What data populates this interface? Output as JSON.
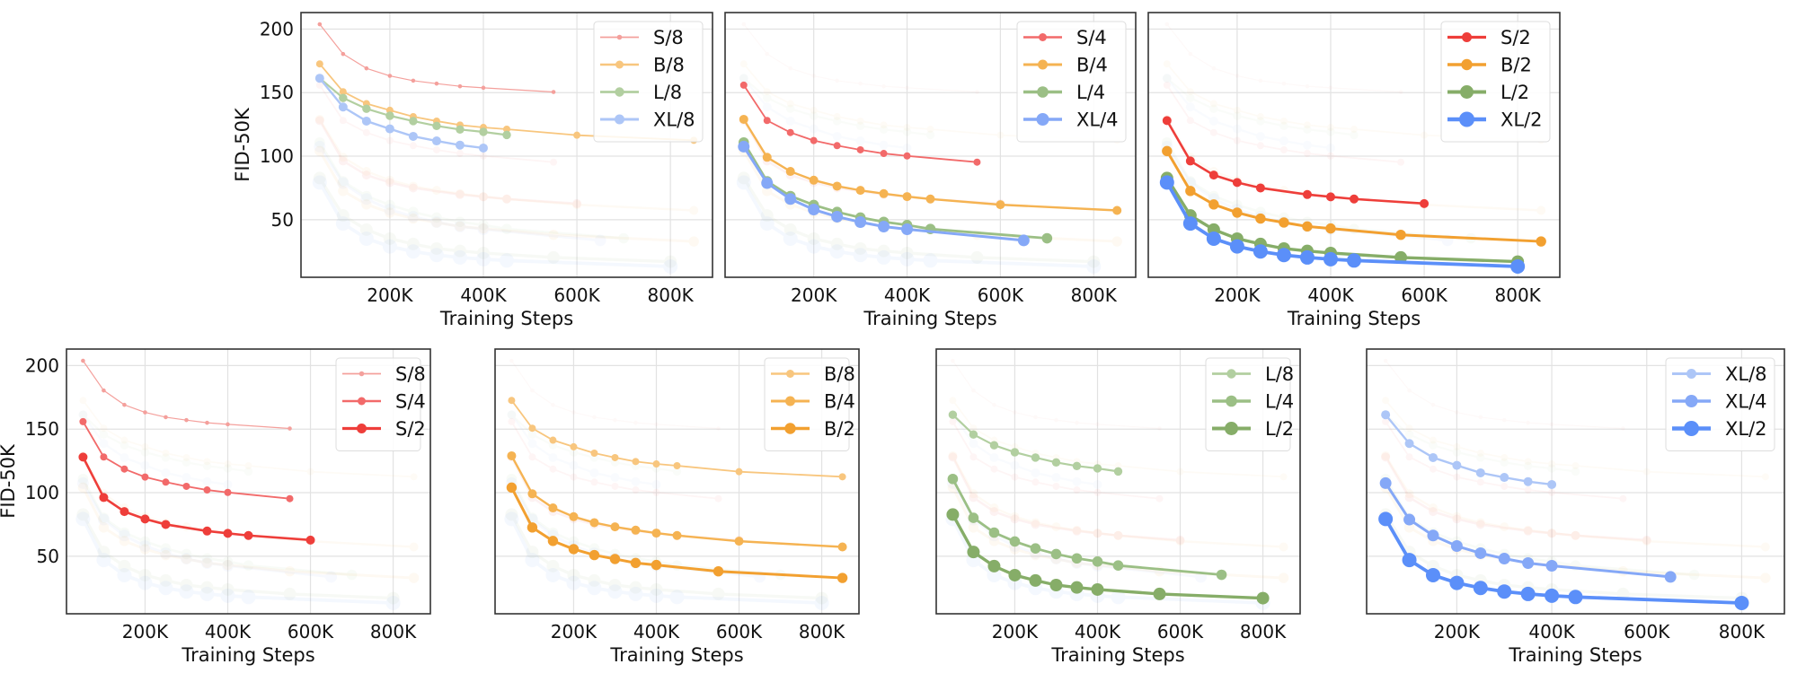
{
  "chart_data": [
    {
      "type": "line",
      "xlabel": "Training Steps",
      "ylabel": "FID-50K",
      "xticks": [
        "200K",
        "400K",
        "600K",
        "800K"
      ],
      "yticks": [
        50,
        100,
        150,
        200
      ],
      "xlim": [
        10000,
        890000
      ],
      "ylim": [
        4.7,
        213
      ],
      "grid": true,
      "legend": "top-right",
      "series": [
        {
          "name": "S/8",
          "color": "#f4a09c",
          "x": [
            50000,
            100000,
            150000,
            200000,
            250000,
            300000,
            350000,
            400000,
            550000
          ],
          "y": [
            203.8,
            180.4,
            169.1,
            163.2,
            159.4,
            157.1,
            155.0,
            153.8,
            150.5
          ]
        },
        {
          "name": "B/8",
          "color": "#f8c67e",
          "x": [
            50000,
            100000,
            150000,
            200000,
            250000,
            300000,
            350000,
            400000,
            450000,
            600000,
            850000
          ],
          "y": [
            172.6,
            150.7,
            141.3,
            136.1,
            131.1,
            127.6,
            124.5,
            122.6,
            121.2,
            116.5,
            112.5
          ]
        },
        {
          "name": "L/8",
          "color": "#b2cfa0",
          "x": [
            50000,
            100000,
            150000,
            200000,
            250000,
            300000,
            350000,
            400000,
            450000
          ],
          "y": [
            161.3,
            145.8,
            137.3,
            131.8,
            127.6,
            123.8,
            121.0,
            119.1,
            116.7
          ]
        },
        {
          "name": "XL/8",
          "color": "#adc6f7",
          "x": [
            50000,
            100000,
            150000,
            200000,
            250000,
            300000,
            350000,
            400000
          ],
          "y": [
            161.3,
            138.7,
            127.6,
            121.5,
            115.6,
            112.0,
            108.7,
            106.4
          ]
        }
      ]
    },
    {
      "type": "line",
      "xlabel": "Training Steps",
      "xticks": [
        "200K",
        "400K",
        "600K",
        "800K"
      ],
      "xlim": [
        10000,
        890000
      ],
      "ylim": [
        4.7,
        213
      ],
      "grid": true,
      "legend": "top-right",
      "series": [
        {
          "name": "S/4",
          "color": "#f26a6a",
          "x": [
            50000,
            100000,
            150000,
            200000,
            250000,
            300000,
            350000,
            400000,
            550000
          ],
          "y": [
            155.9,
            128.1,
            118.6,
            112.3,
            108.3,
            105.0,
            102.1,
            100.2,
            95.3
          ]
        },
        {
          "name": "B/4",
          "color": "#f5b352",
          "x": [
            50000,
            100000,
            150000,
            200000,
            250000,
            300000,
            350000,
            400000,
            450000,
            600000,
            850000
          ],
          "y": [
            129.0,
            99.1,
            88.0,
            81.1,
            76.4,
            73.1,
            70.5,
            68.2,
            66.3,
            61.8,
            57.3
          ]
        },
        {
          "name": "L/4",
          "color": "#9bbf85",
          "x": [
            50000,
            100000,
            150000,
            200000,
            250000,
            300000,
            350000,
            400000,
            450000,
            700000
          ],
          "y": [
            110.8,
            80.2,
            68.6,
            61.6,
            56.1,
            51.7,
            48.3,
            45.8,
            42.7,
            35.4
          ]
        },
        {
          "name": "XL/4",
          "color": "#85a8f7",
          "x": [
            50000,
            100000,
            150000,
            200000,
            250000,
            300000,
            350000,
            400000,
            650000
          ],
          "y": [
            107.5,
            78.8,
            66.3,
            58.0,
            52.4,
            48.1,
            44.6,
            42.5,
            33.7
          ]
        }
      ]
    },
    {
      "type": "line",
      "xlabel": "Training Steps",
      "xticks": [
        "200K",
        "400K",
        "600K",
        "800K"
      ],
      "xlim": [
        10000,
        890000
      ],
      "ylim": [
        4.7,
        213
      ],
      "grid": true,
      "legend": "top-right",
      "series": [
        {
          "name": "S/2",
          "color": "#ee3e3a",
          "x": [
            50000,
            100000,
            150000,
            200000,
            250000,
            350000,
            400000,
            450000,
            600000
          ],
          "y": [
            128.0,
            96.2,
            85.1,
            79.3,
            75.0,
            69.8,
            68.0,
            66.3,
            62.7
          ]
        },
        {
          "name": "B/2",
          "color": "#f2a030",
          "x": [
            50000,
            100000,
            150000,
            200000,
            250000,
            300000,
            350000,
            400000,
            550000,
            850000
          ],
          "y": [
            104.0,
            72.6,
            62.0,
            55.6,
            50.9,
            47.8,
            44.7,
            43.1,
            38.1,
            32.9
          ]
        },
        {
          "name": "L/2",
          "color": "#86ad68",
          "x": [
            50000,
            100000,
            150000,
            200000,
            250000,
            300000,
            350000,
            400000,
            550000,
            800000
          ],
          "y": [
            82.8,
            53.3,
            42.2,
            35.1,
            30.9,
            27.3,
            25.4,
            23.8,
            20.3,
            17.0
          ]
        },
        {
          "name": "XL/2",
          "color": "#5b8ff9",
          "x": [
            50000,
            100000,
            150000,
            200000,
            250000,
            300000,
            350000,
            400000,
            450000,
            800000
          ],
          "y": [
            79.3,
            47.0,
            35.1,
            29.0,
            25.0,
            22.2,
            20.3,
            18.9,
            17.9,
            13.2
          ]
        }
      ]
    },
    {
      "type": "line",
      "xlabel": "Training Steps",
      "ylabel": "FID-50K",
      "xticks": [
        "200K",
        "400K",
        "600K",
        "800K"
      ],
      "yticks": [
        50,
        100,
        150,
        200
      ],
      "xlim": [
        10000,
        890000
      ],
      "ylim": [
        4.7,
        213
      ],
      "grid": true,
      "legend": "top-right",
      "series": [
        {
          "name": "S/8",
          "color": "#f4a09c",
          "x": [
            50000,
            100000,
            150000,
            200000,
            250000,
            300000,
            350000,
            400000,
            550000
          ],
          "y": [
            203.8,
            180.4,
            169.1,
            163.2,
            159.4,
            157.1,
            155.0,
            153.8,
            150.5
          ]
        },
        {
          "name": "S/4",
          "color": "#f26a6a",
          "x": [
            50000,
            100000,
            150000,
            200000,
            250000,
            300000,
            350000,
            400000,
            550000
          ],
          "y": [
            155.9,
            128.1,
            118.6,
            112.3,
            108.3,
            105.0,
            102.1,
            100.2,
            95.3
          ]
        },
        {
          "name": "S/2",
          "color": "#ee3e3a",
          "x": [
            50000,
            100000,
            150000,
            200000,
            250000,
            350000,
            400000,
            450000,
            600000
          ],
          "y": [
            128.0,
            96.2,
            85.1,
            79.3,
            75.0,
            69.8,
            68.0,
            66.3,
            62.7
          ]
        }
      ]
    },
    {
      "type": "line",
      "xlabel": "Training Steps",
      "xticks": [
        "200K",
        "400K",
        "600K",
        "800K"
      ],
      "xlim": [
        10000,
        890000
      ],
      "ylim": [
        4.7,
        213
      ],
      "grid": true,
      "legend": "top-right",
      "series": [
        {
          "name": "B/8",
          "color": "#f8c67e",
          "x": [
            50000,
            100000,
            150000,
            200000,
            250000,
            300000,
            350000,
            400000,
            450000,
            600000,
            850000
          ],
          "y": [
            172.6,
            150.7,
            141.3,
            136.1,
            131.1,
            127.6,
            124.5,
            122.6,
            121.2,
            116.5,
            112.5
          ]
        },
        {
          "name": "B/4",
          "color": "#f5b352",
          "x": [
            50000,
            100000,
            150000,
            200000,
            250000,
            300000,
            350000,
            400000,
            450000,
            600000,
            850000
          ],
          "y": [
            129.0,
            99.1,
            88.0,
            81.1,
            76.4,
            73.1,
            70.5,
            68.2,
            66.3,
            61.8,
            57.3
          ]
        },
        {
          "name": "B/2",
          "color": "#f2a030",
          "x": [
            50000,
            100000,
            150000,
            200000,
            250000,
            300000,
            350000,
            400000,
            550000,
            850000
          ],
          "y": [
            104.0,
            72.6,
            62.0,
            55.6,
            50.9,
            47.8,
            44.7,
            43.1,
            38.1,
            32.9
          ]
        }
      ]
    },
    {
      "type": "line",
      "xlabel": "Training Steps",
      "xticks": [
        "200K",
        "400K",
        "600K",
        "800K"
      ],
      "xlim": [
        10000,
        890000
      ],
      "ylim": [
        4.7,
        213
      ],
      "grid": true,
      "legend": "top-right",
      "series": [
        {
          "name": "L/8",
          "color": "#b2cfa0",
          "x": [
            50000,
            100000,
            150000,
            200000,
            250000,
            300000,
            350000,
            400000,
            450000
          ],
          "y": [
            161.3,
            145.8,
            137.3,
            131.8,
            127.6,
            123.8,
            121.0,
            119.1,
            116.7
          ]
        },
        {
          "name": "L/4",
          "color": "#9bbf85",
          "x": [
            50000,
            100000,
            150000,
            200000,
            250000,
            300000,
            350000,
            400000,
            450000,
            700000
          ],
          "y": [
            110.8,
            80.2,
            68.6,
            61.6,
            56.1,
            51.7,
            48.3,
            45.8,
            42.7,
            35.4
          ]
        },
        {
          "name": "L/2",
          "color": "#86ad68",
          "x": [
            50000,
            100000,
            150000,
            200000,
            250000,
            300000,
            350000,
            400000,
            550000,
            800000
          ],
          "y": [
            82.8,
            53.3,
            42.2,
            35.1,
            30.9,
            27.3,
            25.4,
            23.8,
            20.3,
            17.0
          ]
        }
      ]
    },
    {
      "type": "line",
      "xlabel": "Training Steps",
      "xticks": [
        "200K",
        "400K",
        "600K",
        "800K"
      ],
      "xlim": [
        10000,
        890000
      ],
      "ylim": [
        4.7,
        213
      ],
      "grid": true,
      "legend": "top-right",
      "series": [
        {
          "name": "XL/8",
          "color": "#adc6f7",
          "x": [
            50000,
            100000,
            150000,
            200000,
            250000,
            300000,
            350000,
            400000
          ],
          "y": [
            161.3,
            138.7,
            127.6,
            121.5,
            115.6,
            112.0,
            108.7,
            106.4
          ]
        },
        {
          "name": "XL/4",
          "color": "#85a8f7",
          "x": [
            50000,
            100000,
            150000,
            200000,
            250000,
            300000,
            350000,
            400000,
            650000
          ],
          "y": [
            107.5,
            78.8,
            66.3,
            58.0,
            52.4,
            48.1,
            44.6,
            42.5,
            33.7
          ]
        },
        {
          "name": "XL/2",
          "color": "#5b8ff9",
          "x": [
            50000,
            100000,
            150000,
            200000,
            250000,
            300000,
            350000,
            400000,
            450000,
            800000
          ],
          "y": [
            79.3,
            47.0,
            35.1,
            29.0,
            25.0,
            22.2,
            20.3,
            18.9,
            17.9,
            13.2
          ]
        }
      ]
    }
  ]
}
